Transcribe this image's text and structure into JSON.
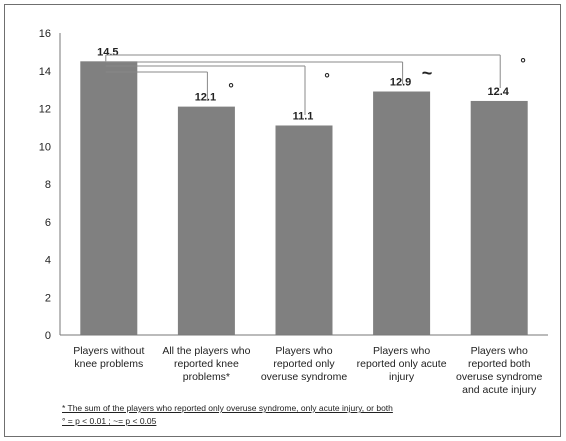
{
  "chart_data": {
    "type": "bar",
    "categories": [
      [
        "Players without",
        "knee problems"
      ],
      [
        "All the players who",
        "reported knee",
        "problems*"
      ],
      [
        "Players who",
        "reported only",
        "overuse syndrome"
      ],
      [
        "Players who",
        "reported only acute",
        "injury"
      ],
      [
        "Players who",
        "reported both",
        "overuse syndrome",
        "and acute injury"
      ]
    ],
    "values": [
      14.5,
      12.1,
      11.1,
      12.9,
      12.4
    ],
    "value_labels": [
      "14.5",
      "12.1",
      "11.1",
      "12.9",
      "12.4"
    ],
    "ylim": [
      0,
      16
    ],
    "yticks": [
      "0",
      "2",
      "4",
      "6",
      "8",
      "10",
      "12",
      "14",
      "16"
    ],
    "bar_color": "#808080",
    "significance": [
      {
        "from": 0,
        "to": 1,
        "marker": "°"
      },
      {
        "from": 0,
        "to": 2,
        "marker": "°"
      },
      {
        "from": 0,
        "to": 3,
        "marker": "~"
      },
      {
        "from": 0,
        "to": 4,
        "marker": "°"
      }
    ],
    "grid": false,
    "legend": "none"
  },
  "footnotes": {
    "line1": "* The sum of the players who reported only overuse syndrome, only acute injury, or both",
    "line2": "° = p < 0.01   ;     ~= p < 0.05"
  }
}
